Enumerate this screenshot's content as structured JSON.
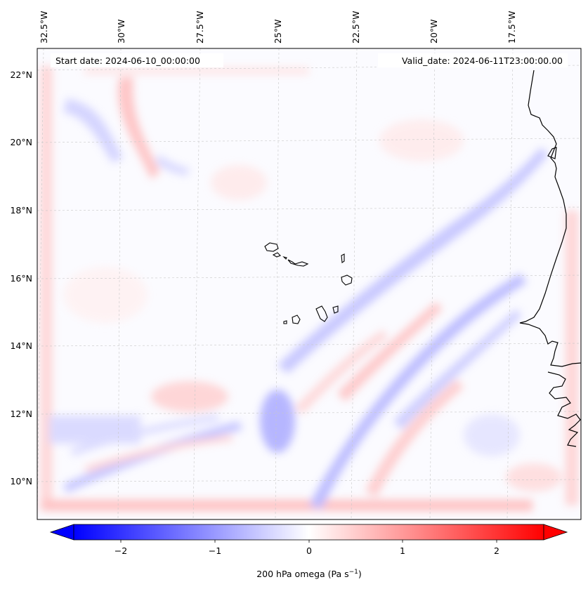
{
  "map": {
    "start_label": "Start date: 2024-06-10_00:00:00",
    "valid_label": "Valid_date: 2024-06-11T23:00:00.00",
    "lon_labels": [
      "32.5°W",
      "30°W",
      "27.5°W",
      "25°W",
      "22.5°W",
      "20°W",
      "17.5°W"
    ],
    "lat_labels": [
      "22°N",
      "20°N",
      "18°N",
      "16°N",
      "14°N",
      "12°N",
      "10°N"
    ],
    "field": "200 hPa omega",
    "diverging_colors": {
      "negative": "#0000ff",
      "zero": "#ffffff",
      "positive": "#ff0000"
    }
  },
  "colorbar": {
    "label": "200 hPa omega (Pa s",
    "label_exp": "−1",
    "label_tail": ")",
    "ticks": [
      "−2",
      "−1",
      "0",
      "1",
      "2"
    ],
    "tick_values": [
      -2,
      -1,
      0,
      1,
      2
    ],
    "range": [
      -2.5,
      2.5
    ]
  }
}
